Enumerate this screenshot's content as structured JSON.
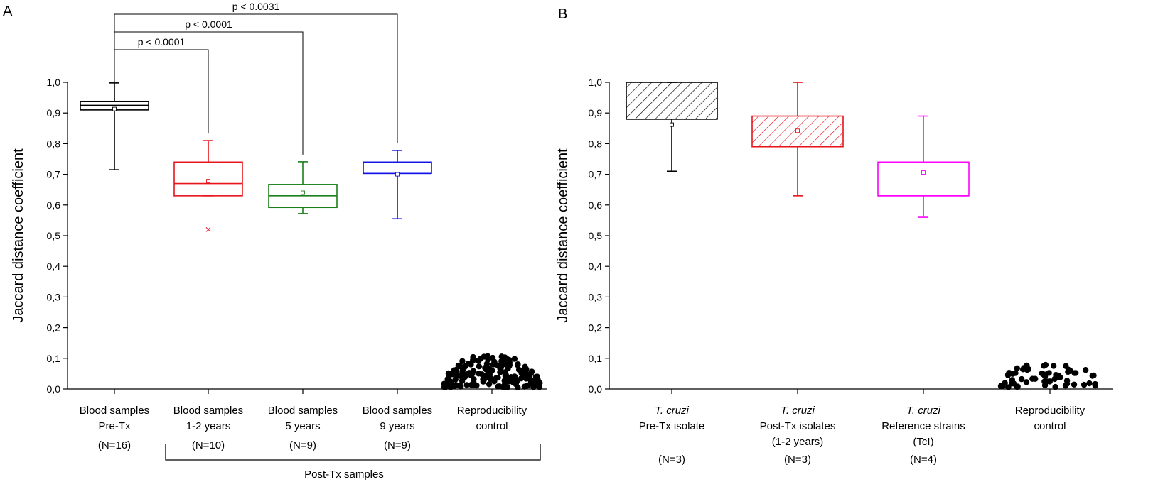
{
  "chart_data": [
    {
      "panel": "A",
      "type": "box",
      "ylabel": "Jaccard distance coefficient",
      "ylim": [
        0,
        1
      ],
      "yticks": [
        "0,0",
        "0,1",
        "0,2",
        "0,3",
        "0,4",
        "0,5",
        "0,6",
        "0,7",
        "0,8",
        "0,9",
        "1,0"
      ],
      "groups": [
        {
          "name_line1": "Blood samples",
          "name_line2": "Pre-Tx",
          "n": "(N=16)",
          "color": "#000000",
          "whisker_low": 0.715,
          "q1": 0.91,
          "median": 0.925,
          "q3": 0.938,
          "whisker_high": 0.998,
          "mean": 0.913,
          "outliers": []
        },
        {
          "name_line1": "Blood samples",
          "name_line2": "1-2 years",
          "n": "(N=10)",
          "color": "#e8141b",
          "whisker_low": 0.63,
          "q1": 0.63,
          "median": 0.67,
          "q3": 0.74,
          "whisker_high": 0.81,
          "mean": 0.678,
          "outliers": [
            0.52
          ]
        },
        {
          "name_line1": "Blood samples",
          "name_line2": "5 years",
          "n": "(N=9)",
          "color": "#1b7f1b",
          "whisker_low": 0.572,
          "q1": 0.592,
          "median": 0.63,
          "q3": 0.667,
          "whisker_high": 0.741,
          "mean": 0.64,
          "outliers": []
        },
        {
          "name_line1": "Blood samples",
          "name_line2": "9 years",
          "n": "(N=9)",
          "color": "#1414e6",
          "whisker_low": 0.555,
          "q1": 0.703,
          "median": 0.703,
          "q3": 0.74,
          "whisker_high": 0.778,
          "mean": 0.7,
          "outliers": []
        }
      ],
      "reproducibility": {
        "name_line1": "Reproducibility",
        "name_line2": "control",
        "max_value": 0.11
      },
      "comparisons": [
        {
          "label": "p < 0.0001",
          "from": 0,
          "to": 1
        },
        {
          "label": "p < 0.0001",
          "from": 0,
          "to": 2
        },
        {
          "label": "p < 0.0031",
          "from": 0,
          "to": 3
        }
      ],
      "bracket_label": "Post-Tx samples"
    },
    {
      "panel": "B",
      "type": "box",
      "ylabel": "Jaccard distance coefficient",
      "ylim": [
        0,
        1
      ],
      "yticks": [
        "0,0",
        "0,1",
        "0,2",
        "0,3",
        "0,4",
        "0,5",
        "0,6",
        "0,7",
        "0,8",
        "0,9",
        "1,0"
      ],
      "groups": [
        {
          "name_line1": "T. cruzi",
          "name_line2": "Pre-Tx isolate",
          "name_line3": "",
          "n": "(N=3)",
          "color": "#000000",
          "hatched": true,
          "whisker_low": 0.71,
          "q1": 0.88,
          "median": 0.88,
          "q3": 1.0,
          "whisker_high": 1.0,
          "mean": 0.862,
          "outliers": []
        },
        {
          "name_line1": "T. cruzi",
          "name_line2": "Post-Tx isolates",
          "name_line3": "(1-2 years)",
          "n": "(N=3)",
          "color": "#e8141b",
          "hatched": true,
          "whisker_low": 0.63,
          "q1": 0.79,
          "median": 0.79,
          "q3": 0.89,
          "whisker_high": 1.0,
          "mean": 0.842,
          "outliers": []
        },
        {
          "name_line1": "T. cruzi",
          "name_line2": "Reference strains",
          "name_line3": "(TcI)",
          "n": "(N=4)",
          "color": "#ff00ff",
          "hatched": false,
          "whisker_low": 0.56,
          "q1": 0.63,
          "median": 0.63,
          "q3": 0.74,
          "whisker_high": 0.89,
          "mean": 0.706,
          "outliers": []
        }
      ],
      "reproducibility": {
        "name_line1": "Reproducibility",
        "name_line2": "control",
        "max_value": 0.085
      }
    }
  ]
}
